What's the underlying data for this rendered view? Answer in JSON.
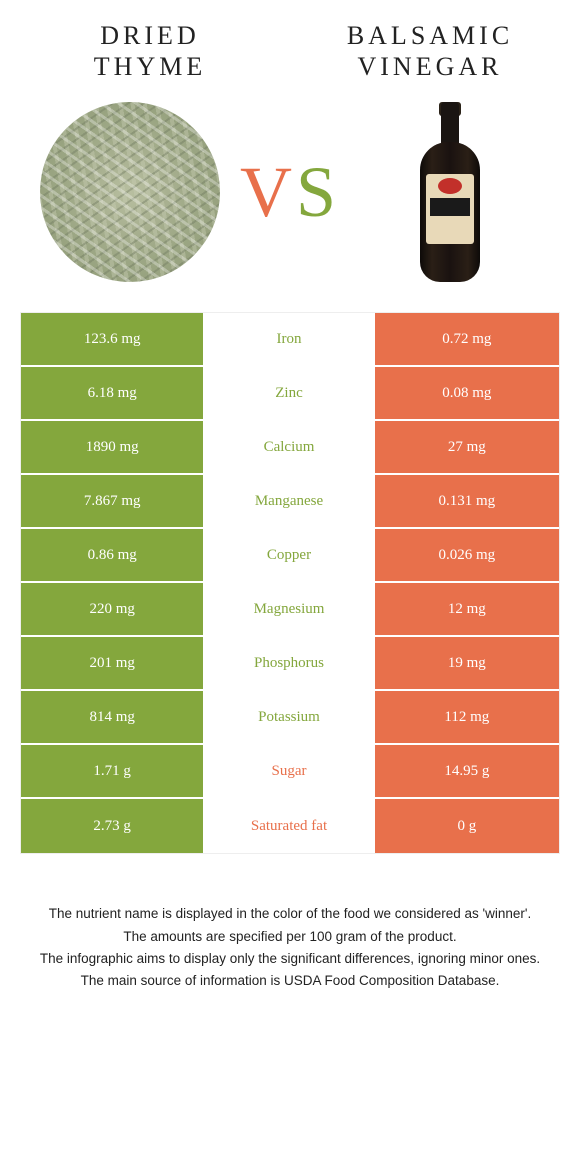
{
  "header": {
    "left_title_line1": "DRIED",
    "left_title_line2": "THYME",
    "right_title_line1": "BALSAMIC",
    "right_title_line2": "VINEGAR",
    "vs_label": "VS",
    "vs_color_left": "#e8704b",
    "vs_color_right": "#84a73d"
  },
  "colors": {
    "green": "#84a73d",
    "orange": "#e8704b",
    "white": "#ffffff"
  },
  "rows": [
    {
      "left": "123.6 mg",
      "nutrient": "Iron",
      "right": "0.72 mg",
      "left_bg": "#84a73d",
      "right_bg": "#e8704b",
      "nutrient_color": "#84a73d"
    },
    {
      "left": "6.18 mg",
      "nutrient": "Zinc",
      "right": "0.08 mg",
      "left_bg": "#84a73d",
      "right_bg": "#e8704b",
      "nutrient_color": "#84a73d"
    },
    {
      "left": "1890 mg",
      "nutrient": "Calcium",
      "right": "27 mg",
      "left_bg": "#84a73d",
      "right_bg": "#e8704b",
      "nutrient_color": "#84a73d"
    },
    {
      "left": "7.867 mg",
      "nutrient": "Manganese",
      "right": "0.131 mg",
      "left_bg": "#84a73d",
      "right_bg": "#e8704b",
      "nutrient_color": "#84a73d"
    },
    {
      "left": "0.86 mg",
      "nutrient": "Copper",
      "right": "0.026 mg",
      "left_bg": "#84a73d",
      "right_bg": "#e8704b",
      "nutrient_color": "#84a73d"
    },
    {
      "left": "220 mg",
      "nutrient": "Magnesium",
      "right": "12 mg",
      "left_bg": "#84a73d",
      "right_bg": "#e8704b",
      "nutrient_color": "#84a73d"
    },
    {
      "left": "201 mg",
      "nutrient": "Phosphorus",
      "right": "19 mg",
      "left_bg": "#84a73d",
      "right_bg": "#e8704b",
      "nutrient_color": "#84a73d"
    },
    {
      "left": "814 mg",
      "nutrient": "Potassium",
      "right": "112 mg",
      "left_bg": "#84a73d",
      "right_bg": "#e8704b",
      "nutrient_color": "#84a73d"
    },
    {
      "left": "1.71 g",
      "nutrient": "Sugar",
      "right": "14.95 g",
      "left_bg": "#84a73d",
      "right_bg": "#e8704b",
      "nutrient_color": "#e8704b"
    },
    {
      "left": "2.73 g",
      "nutrient": "Saturated fat",
      "right": "0 g",
      "left_bg": "#84a73d",
      "right_bg": "#e8704b",
      "nutrient_color": "#e8704b"
    }
  ],
  "footnotes": [
    "The nutrient name is displayed in the color of the food we considered as 'winner'.",
    "The amounts are specified per 100 gram of the product.",
    "The infographic aims to display only the significant differences, ignoring minor ones.",
    "The main source of information is USDA Food Composition Database."
  ]
}
